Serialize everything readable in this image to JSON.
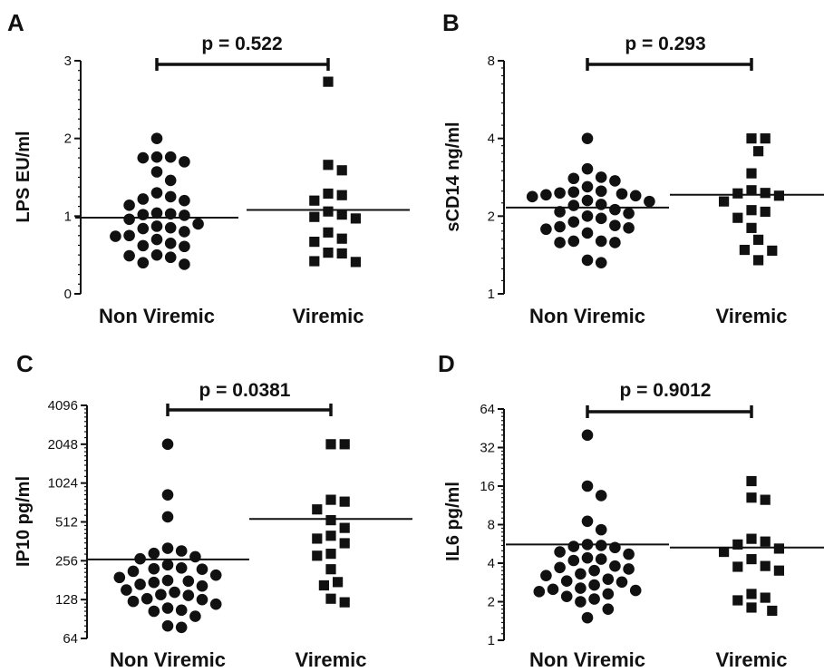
{
  "chart_data": [
    {
      "panel": "A",
      "type": "scatter",
      "ylabel": "LPS EU/ml",
      "yscale": "linear",
      "ylim": [
        0,
        3
      ],
      "yticks": [
        "0",
        "1",
        "2",
        "3"
      ],
      "categories": [
        "Non Viremic",
        "Viremic"
      ],
      "p_value": "p = 0.522",
      "series": [
        {
          "category": "Non Viremic",
          "marker": "circle",
          "mean": 0.98,
          "values": [
            2.0,
            1.76,
            1.7,
            1.76,
            1.75,
            1.57,
            1.46,
            1.3,
            1.22,
            1.2,
            1.25,
            1.14,
            1.01,
            1.02,
            1.03,
            0.96,
            1.04,
            0.87,
            0.85,
            0.9,
            0.84,
            0.8,
            0.75,
            0.7,
            0.74,
            0.65,
            0.62,
            0.61,
            0.5,
            0.49,
            0.47,
            0.4,
            0.38
          ]
        },
        {
          "category": "Viremic",
          "marker": "square",
          "mean": 1.08,
          "values": [
            2.73,
            1.66,
            1.59,
            1.29,
            1.27,
            1.2,
            1.06,
            1.02,
            0.99,
            0.97,
            0.79,
            0.71,
            0.67,
            0.53,
            0.52,
            0.42,
            0.41
          ]
        }
      ]
    },
    {
      "panel": "B",
      "type": "scatter",
      "ylabel": "sCD14 ng/ml",
      "yscale": "log2",
      "ylim": [
        1,
        8
      ],
      "yticks": [
        "1",
        "2",
        "4",
        "8"
      ],
      "categories": [
        "Non Viremic",
        "Viremic"
      ],
      "p_value": "p = 0.293",
      "series": [
        {
          "category": "Non Viremic",
          "marker": "circle",
          "mean": 2.16,
          "values": [
            4.0,
            3.05,
            2.83,
            2.8,
            2.74,
            2.6,
            2.5,
            2.48,
            2.46,
            2.4,
            2.44,
            2.38,
            2.42,
            2.3,
            2.28,
            2.22,
            2.2,
            2.12,
            2.05,
            2.08,
            1.96,
            2.0,
            1.9,
            1.82,
            1.84,
            1.8,
            1.78,
            1.72,
            1.6,
            1.6,
            1.58,
            1.58,
            1.35,
            1.32
          ]
        },
        {
          "category": "Viremic",
          "marker": "square",
          "mean": 2.42,
          "values": [
            4.0,
            4.0,
            3.57,
            2.93,
            2.52,
            2.45,
            2.46,
            2.4,
            2.28,
            2.11,
            2.08,
            1.97,
            1.8,
            1.62,
            1.48,
            1.47,
            1.35
          ]
        }
      ]
    },
    {
      "panel": "C",
      "type": "scatter",
      "ylabel": "IP10 pg/ml",
      "yscale": "log2",
      "ylim": [
        64,
        4096
      ],
      "yticks": [
        "64",
        "128",
        "256",
        "512",
        "1024",
        "2048",
        "4096"
      ],
      "categories": [
        "Non Viremic",
        "Viremic"
      ],
      "p_value": "p = 0.0381",
      "series": [
        {
          "category": "Non Viremic",
          "marker": "circle",
          "mean": 262,
          "values": [
            2048,
            830,
            560,
            320,
            305,
            292,
            275,
            265,
            238,
            225,
            222,
            220,
            212,
            198,
            190,
            180,
            178,
            174,
            168,
            163,
            152,
            146,
            140,
            138,
            130,
            128,
            124,
            118,
            110,
            106,
            104,
            95,
            80,
            78
          ]
        },
        {
          "category": "Viremic",
          "marker": "square",
          "mean": 540,
          "values": [
            2048,
            2048,
            760,
            735,
            640,
            528,
            460,
            400,
            380,
            350,
            290,
            280,
            220,
            175,
            165,
            130,
            122
          ]
        }
      ]
    },
    {
      "panel": "D",
      "type": "scatter",
      "ylabel": "IL6 pg/ml",
      "yscale": "log2",
      "ylim": [
        1,
        64
      ],
      "yticks": [
        "1",
        "2",
        "4",
        "8",
        "16",
        "32",
        "64"
      ],
      "categories": [
        "Non Viremic",
        "Viremic"
      ],
      "p_value": "p = 0.9012",
      "series": [
        {
          "category": "Non Viremic",
          "marker": "circle",
          "mean": 5.6,
          "values": [
            40,
            16,
            13.5,
            8.5,
            7.3,
            5.6,
            5.5,
            5.3,
            5.4,
            4.9,
            4.7,
            4.4,
            4.3,
            4.2,
            3.8,
            3.7,
            3.6,
            3.5,
            3.3,
            3.2,
            3.0,
            2.9,
            2.85,
            2.7,
            2.55,
            2.5,
            2.45,
            2.4,
            2.3,
            2.2,
            2.1,
            2.0,
            1.75,
            1.5
          ]
        },
        {
          "category": "Viremic",
          "marker": "square",
          "mean": 5.3,
          "values": [
            17.5,
            13,
            12.5,
            6.2,
            5.9,
            5.6,
            5.2,
            4.9,
            4.3,
            3.8,
            3.75,
            3.5,
            2.3,
            2.15,
            2.05,
            1.8,
            1.7
          ]
        }
      ]
    }
  ]
}
